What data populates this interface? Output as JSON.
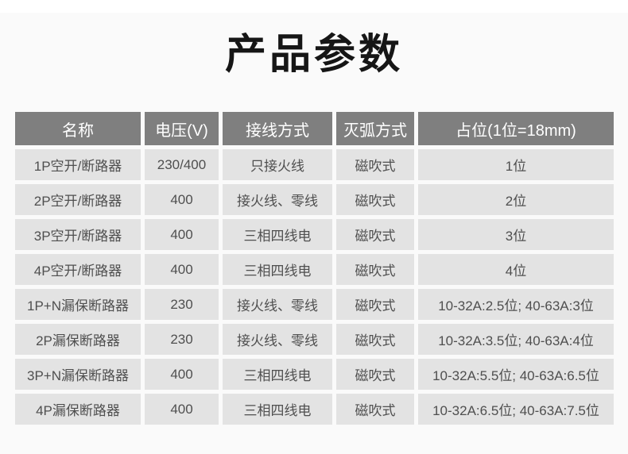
{
  "page": {
    "title": "产品参数"
  },
  "table": {
    "columns": [
      "名称",
      "电压(V)",
      "接线方式",
      "灭弧方式",
      "占位(1位=18mm)"
    ],
    "rows": [
      [
        "1P空开/断路器",
        "230/400",
        "只接火线",
        "磁吹式",
        "1位"
      ],
      [
        "2P空开/断路器",
        "400",
        "接火线、零线",
        "磁吹式",
        "2位"
      ],
      [
        "3P空开/断路器",
        "400",
        "三相四线电",
        "磁吹式",
        "3位"
      ],
      [
        "4P空开/断路器",
        "400",
        "三相四线电",
        "磁吹式",
        "4位"
      ],
      [
        "1P+N漏保断路器",
        "230",
        "接火线、零线",
        "磁吹式",
        "10-32A:2.5位; 40-63A:3位"
      ],
      [
        "2P漏保断路器",
        "230",
        "接火线、零线",
        "磁吹式",
        "10-32A:3.5位; 40-63A:4位"
      ],
      [
        "3P+N漏保断路器",
        "400",
        "三相四线电",
        "磁吹式",
        "10-32A:5.5位; 40-63A:6.5位"
      ],
      [
        "4P漏保断路器",
        "400",
        "三相四线电",
        "磁吹式",
        "10-32A:6.5位; 40-63A:7.5位"
      ]
    ]
  },
  "colors": {
    "header_bg": "#7f7f7f",
    "header_text": "#ffffff",
    "cell_bg": "#e3e3e3",
    "cell_text": "#4f4f4f",
    "title_text": "#161616",
    "page_bg": "#fafafa",
    "gap": "#ffffff"
  }
}
